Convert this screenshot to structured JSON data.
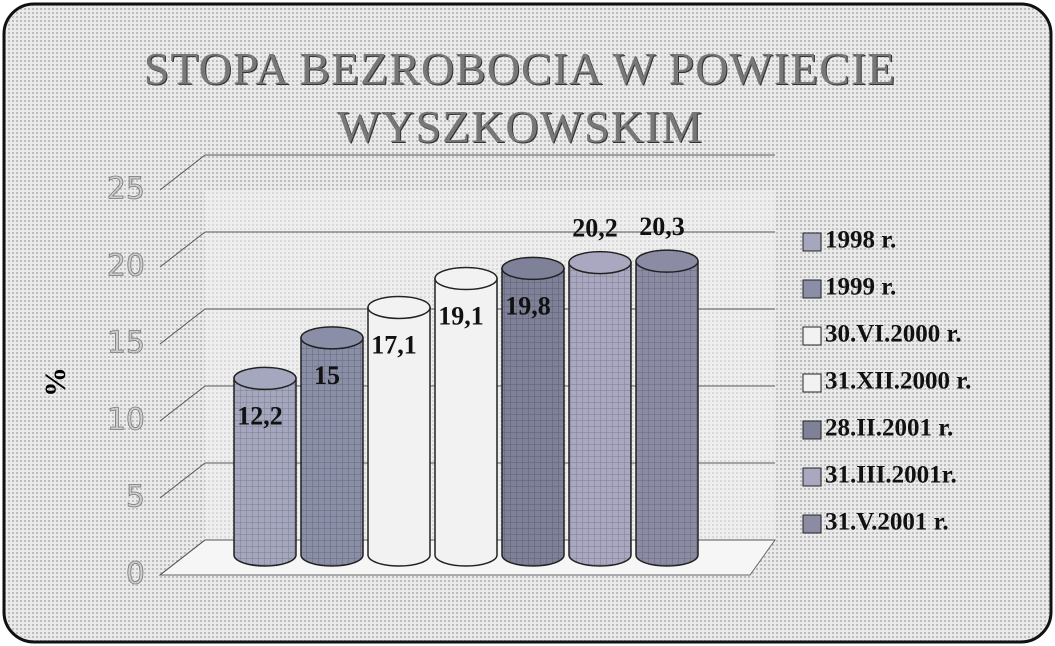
{
  "chart_data": {
    "type": "bar",
    "title": "STOPA BEZROBOCIA W POWIECIE WYSZKOWSKIM",
    "y_label": "%",
    "categories": [
      "1998 r.",
      "1999 r.",
      "30.VI.2000 r.",
      "31.XII.2000 r.",
      "28.II.2001 r.",
      "31.III.2001r.",
      "31.V.2001 r."
    ],
    "values": [
      12.2,
      15,
      17.1,
      19.1,
      19.8,
      20.2,
      20.3
    ],
    "value_labels": [
      "12,2",
      "15",
      "17,1",
      "19,1",
      "19,8",
      "20,2",
      "20,3"
    ],
    "colors": [
      "#a4a7bd",
      "#8a8ea6",
      "#f2f2f2",
      "#f2f2f2",
      "#7e8198",
      "#aaa7c0",
      "#8b8ca4"
    ],
    "ylim": [
      0,
      25
    ],
    "yticks": [
      0,
      5,
      10,
      15,
      20,
      25
    ],
    "grid": true,
    "legend": "right"
  }
}
